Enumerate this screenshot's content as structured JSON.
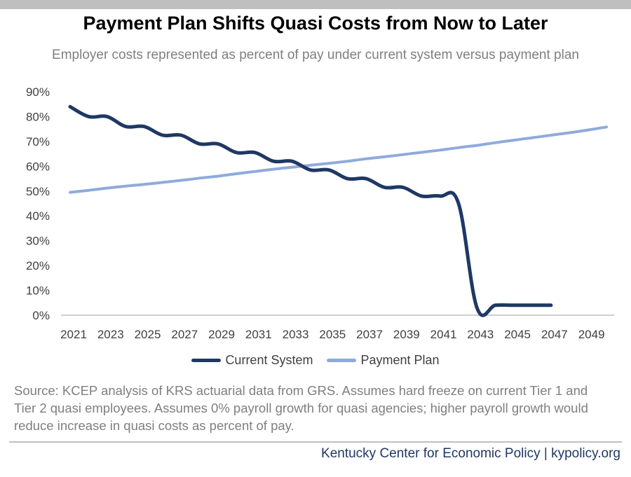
{
  "header": {
    "title": "Payment Plan Shifts Quasi Costs from Now to Later",
    "subtitle": "Employer costs represented as percent of pay under current system versus payment plan"
  },
  "chart_data": {
    "type": "line",
    "title": "Payment Plan Shifts Quasi Costs from Now to Later",
    "subtitle": "Employer costs represented as percent of pay under current system versus payment plan",
    "xlabel": "",
    "ylabel": "",
    "x_tick_labels": [
      "2021",
      "2023",
      "2025",
      "2027",
      "2029",
      "2031",
      "2033",
      "2035",
      "2037",
      "2039",
      "2041",
      "2043",
      "2045",
      "2047",
      "2049"
    ],
    "y_tick_labels": [
      "0%",
      "10%",
      "20%",
      "30%",
      "40%",
      "50%",
      "60%",
      "70%",
      "80%",
      "90%"
    ],
    "ylim": [
      0,
      90
    ],
    "xlim": [
      2021,
      2050
    ],
    "grid": false,
    "legend_position": "bottom",
    "series": [
      {
        "name": "Current System",
        "color": "#1f3864",
        "x": [
          2021,
          2022,
          2023,
          2024,
          2025,
          2026,
          2027,
          2028,
          2029,
          2030,
          2031,
          2032,
          2033,
          2034,
          2035,
          2036,
          2037,
          2038,
          2039,
          2040,
          2041,
          2042,
          2043,
          2044,
          2045,
          2046,
          2047
        ],
        "values": [
          84,
          80,
          80,
          76,
          76,
          72.5,
          72.5,
          69,
          69,
          65.5,
          65.5,
          62,
          62,
          58.5,
          58.5,
          55,
          55,
          51.5,
          51.5,
          48,
          48,
          45,
          3,
          4,
          4,
          4,
          4
        ]
      },
      {
        "name": "Payment Plan",
        "color": "#8faadc",
        "x": [
          2021,
          2022,
          2023,
          2024,
          2025,
          2026,
          2027,
          2028,
          2029,
          2030,
          2031,
          2032,
          2033,
          2034,
          2035,
          2036,
          2037,
          2038,
          2039,
          2040,
          2041,
          2042,
          2043,
          2044,
          2045,
          2046,
          2047,
          2048,
          2049,
          2050
        ],
        "values": [
          49.5,
          50.3,
          51.2,
          52,
          52.7,
          53.5,
          54.3,
          55.2,
          56,
          57,
          57.9,
          58.8,
          59.6,
          60.4,
          61.2,
          62,
          63,
          63.8,
          64.7,
          65.6,
          66.5,
          67.5,
          68.4,
          69.5,
          70.5,
          71.5,
          72.5,
          73.5,
          74.6,
          75.8
        ]
      }
    ]
  },
  "legend": {
    "current_label": "Current System",
    "plan_label": "Payment Plan"
  },
  "source_note": "Source: KCEP analysis of KRS actuarial data from GRS. Assumes hard freeze on current Tier 1 and Tier 2 quasi employees. Assumes 0% payroll growth for quasi agencies; higher payroll growth would reduce increase in quasi costs as percent of pay.",
  "footer": "Kentucky Center for Economic Policy | kypolicy.org"
}
